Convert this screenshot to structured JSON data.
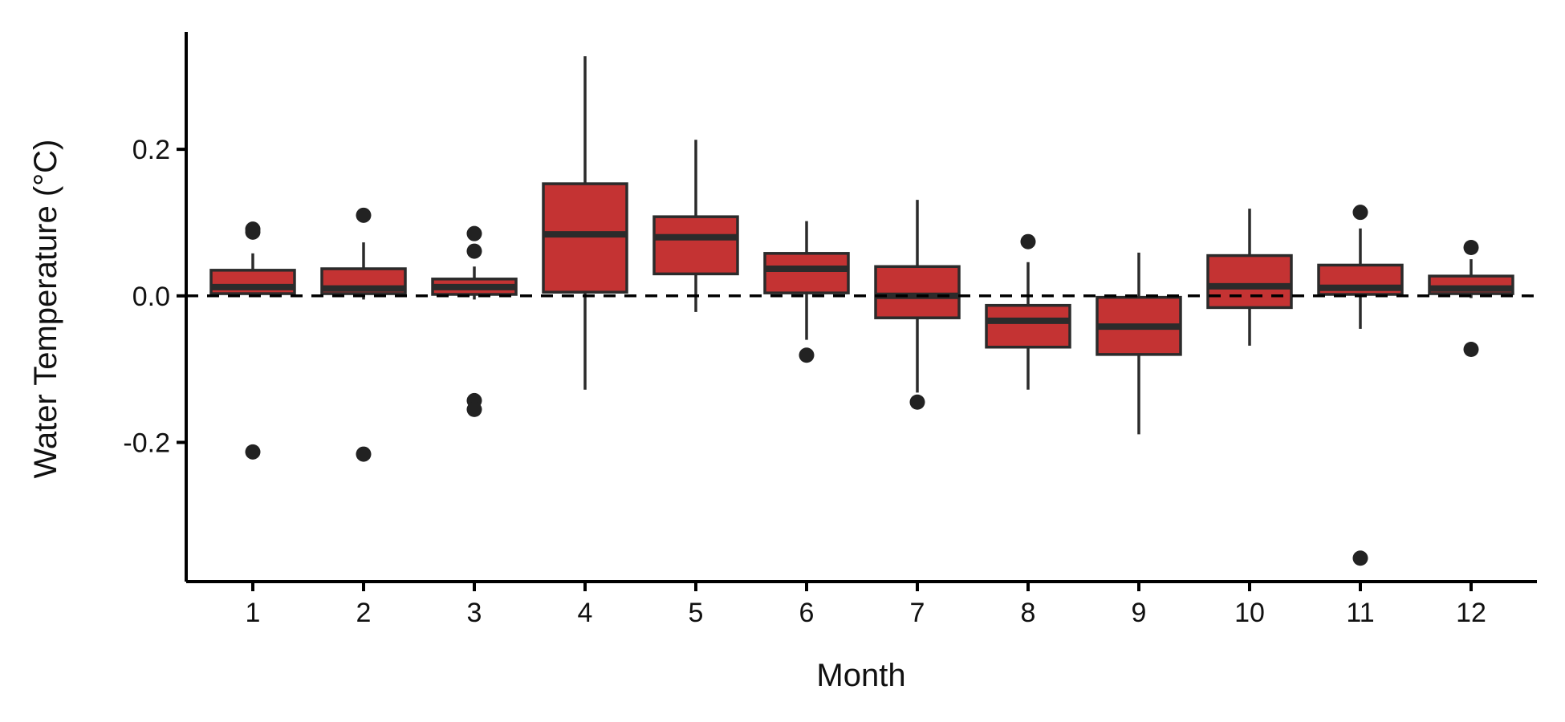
{
  "chart_data": {
    "type": "box",
    "xlabel": "Month",
    "ylabel": "Water Temperature (°C)",
    "categories": [
      "1",
      "2",
      "3",
      "4",
      "5",
      "6",
      "7",
      "8",
      "9",
      "10",
      "11",
      "12"
    ],
    "ylim": [
      -0.39,
      0.36
    ],
    "yticks": [
      0.2,
      0.0,
      -0.2
    ],
    "ytick_labels": [
      "0.2",
      "0.0",
      "-0.2"
    ],
    "reference_line": {
      "y": 0.0,
      "style": "dashed"
    },
    "grid": false,
    "legend": "none",
    "colors": {
      "box_fill": "#c43333",
      "box_stroke": "#2b2b2b",
      "outlier": "#222222",
      "axis": "#000000"
    },
    "boxes": [
      {
        "month": "1",
        "q1": 0.003,
        "median": 0.012,
        "q3": 0.035,
        "whisker_low": 0.0,
        "whisker_high": 0.058,
        "outliers": [
          0.091,
          0.087,
          -0.213
        ]
      },
      {
        "month": "2",
        "q1": 0.003,
        "median": 0.01,
        "q3": 0.037,
        "whisker_low": -0.005,
        "whisker_high": 0.073,
        "outliers": [
          0.11,
          -0.216
        ]
      },
      {
        "month": "3",
        "q1": 0.002,
        "median": 0.012,
        "q3": 0.023,
        "whisker_low": -0.005,
        "whisker_high": 0.04,
        "outliers": [
          0.085,
          0.061,
          -0.143,
          -0.155
        ]
      },
      {
        "month": "4",
        "q1": 0.005,
        "median": 0.084,
        "q3": 0.153,
        "whisker_low": -0.128,
        "whisker_high": 0.327,
        "outliers": []
      },
      {
        "month": "5",
        "q1": 0.03,
        "median": 0.08,
        "q3": 0.108,
        "whisker_low": -0.022,
        "whisker_high": 0.213,
        "outliers": []
      },
      {
        "month": "6",
        "q1": 0.004,
        "median": 0.037,
        "q3": 0.058,
        "whisker_low": -0.06,
        "whisker_high": 0.102,
        "outliers": [
          -0.081
        ]
      },
      {
        "month": "7",
        "q1": -0.03,
        "median": 0.0,
        "q3": 0.04,
        "whisker_low": -0.132,
        "whisker_high": 0.131,
        "outliers": [
          -0.145
        ]
      },
      {
        "month": "8",
        "q1": -0.07,
        "median": -0.034,
        "q3": -0.013,
        "whisker_low": -0.128,
        "whisker_high": 0.046,
        "outliers": [
          0.074
        ]
      },
      {
        "month": "9",
        "q1": -0.08,
        "median": -0.042,
        "q3": -0.002,
        "whisker_low": -0.189,
        "whisker_high": 0.059,
        "outliers": []
      },
      {
        "month": "10",
        "q1": -0.016,
        "median": 0.013,
        "q3": 0.055,
        "whisker_low": -0.068,
        "whisker_high": 0.119,
        "outliers": []
      },
      {
        "month": "11",
        "q1": 0.002,
        "median": 0.011,
        "q3": 0.042,
        "whisker_low": -0.045,
        "whisker_high": 0.092,
        "outliers": [
          0.114,
          -0.358
        ]
      },
      {
        "month": "12",
        "q1": 0.003,
        "median": 0.01,
        "q3": 0.027,
        "whisker_low": -0.003,
        "whisker_high": 0.05,
        "outliers": [
          0.066,
          -0.073
        ]
      }
    ]
  }
}
